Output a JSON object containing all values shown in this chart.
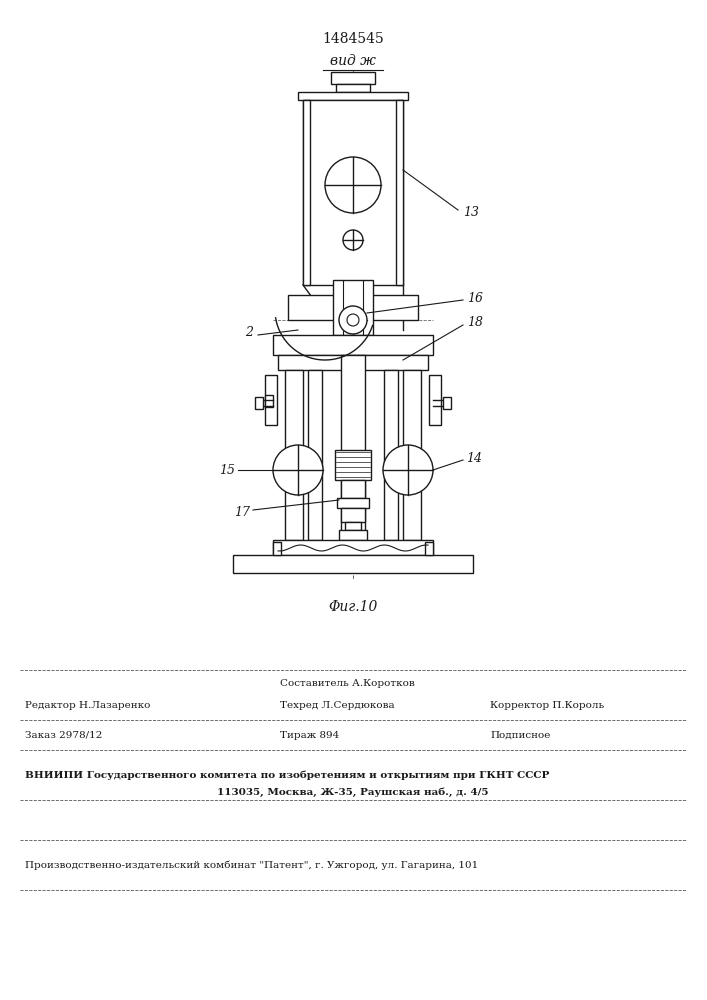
{
  "patent_number": "1484545",
  "view_label": "вид ж",
  "fig_label": "Φиг.10",
  "bg_color": "#ffffff",
  "line_color": "#1a1a1a",
  "footer": {
    "col2_line1": "Составитель А.Коротков",
    "col2_line2": "Техред Л.Сердюкова",
    "col1_line1": "Редактор Н.Лазаренко",
    "col3_line2": "Корректор П.Король",
    "col1_line3": "Заказ 2978/12",
    "col2_line3": "Тираж 894",
    "col3_line3": "Подписное",
    "line4": "ВНИИПИ Государственного комитета по изобретениям и открытиям при ГКНТ СССР",
    "line5": "113035, Москва, Ж-35, Раушская наб., д. 4/5",
    "line6": "Производственно-издательский комбинат \"Патент\", г. Ужгород, ул. Гагарина, 101"
  }
}
